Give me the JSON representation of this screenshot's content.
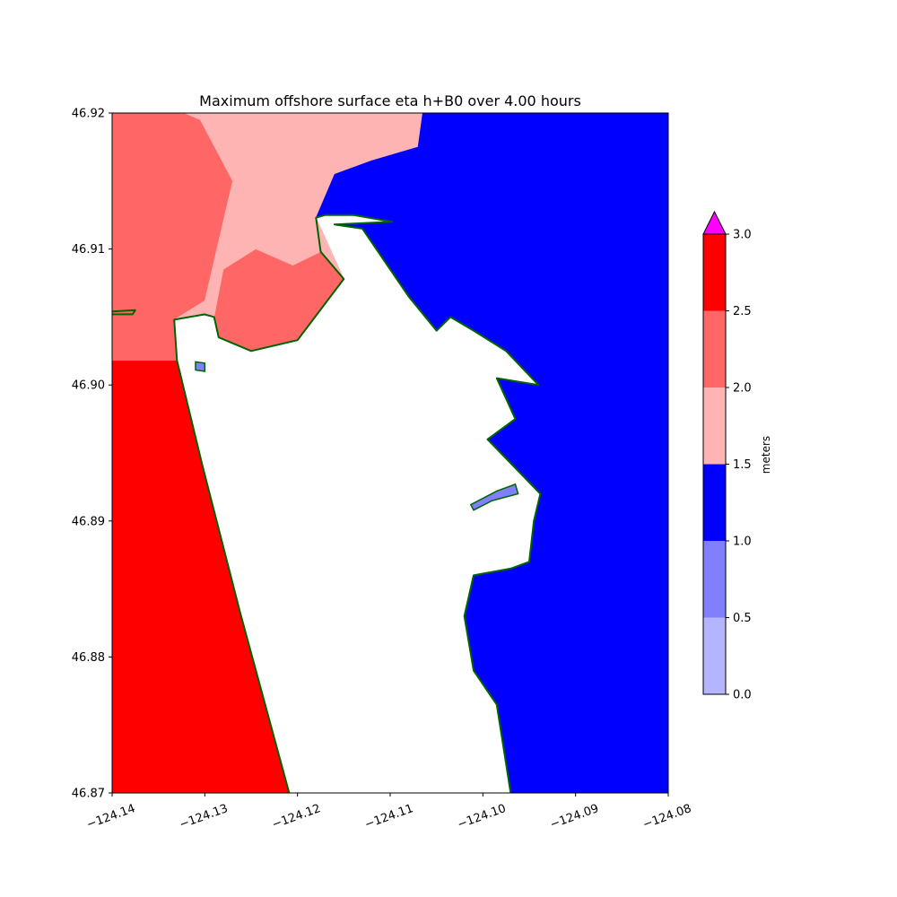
{
  "chart_data": {
    "type": "heatmap",
    "title": "Maximum offshore surface eta h+B0 over 4.00 hours",
    "xlim": [
      -124.14,
      -124.08
    ],
    "ylim": [
      46.87,
      46.92
    ],
    "x_ticks": [
      "−124.14",
      "−124.13",
      "−124.12",
      "−124.11",
      "−124.10",
      "−124.09",
      "−124.08"
    ],
    "y_ticks": [
      "46.87",
      "46.88",
      "46.89",
      "46.90",
      "46.91",
      "46.92"
    ],
    "x_tick_values": [
      -124.14,
      -124.13,
      -124.12,
      -124.11,
      -124.1,
      -124.09,
      -124.08
    ],
    "y_tick_values": [
      46.87,
      46.88,
      46.89,
      46.9,
      46.91,
      46.92
    ],
    "colorbar": {
      "label": "meters",
      "ticks": [
        "0.0",
        "0.5",
        "1.0",
        "1.5",
        "2.0",
        "2.5",
        "3.0"
      ],
      "levels": [
        0.0,
        0.5,
        1.0,
        1.5,
        2.0,
        2.5,
        3.0
      ],
      "colors": [
        "#b4b4ff",
        "#8080ff",
        "#0000ff",
        "#ffb4b4",
        "#ff6666",
        "#ff0000"
      ],
      "extend_max_color": "#ff00ff"
    },
    "land_color": "#ffffff",
    "shoreline_color": "#006400",
    "regions": [
      {
        "name": "ocean-west-red",
        "level": "2.5-3.0",
        "color": "#ff0000",
        "lonlat": [
          [
            -124.14,
            46.87
          ],
          [
            -124.1209,
            46.87
          ],
          [
            -124.1262,
            46.8833
          ],
          [
            -124.1303,
            46.8942
          ],
          [
            -124.133,
            46.9018
          ],
          [
            -124.14,
            46.9018
          ]
        ]
      },
      {
        "name": "ocean-west-salmon",
        "level": "2.0-2.5",
        "color": "#ff6666",
        "lonlat": [
          [
            -124.14,
            46.9018
          ],
          [
            -124.133,
            46.9018
          ],
          [
            -124.1333,
            46.9048
          ],
          [
            -124.131,
            46.9052
          ],
          [
            -124.129,
            46.905
          ],
          [
            -124.1285,
            46.9035
          ],
          [
            -124.125,
            46.9025
          ],
          [
            -124.12,
            46.9033
          ],
          [
            -124.115,
            46.9078
          ],
          [
            -124.118,
            46.9123
          ],
          [
            -124.1225,
            46.914
          ],
          [
            -124.1305,
            46.9195
          ],
          [
            -124.1322,
            46.92
          ],
          [
            -124.14,
            46.92
          ]
        ]
      },
      {
        "name": "ocean-north-pink",
        "level": "1.5-2.0",
        "color": "#ffb4b4",
        "lonlat": [
          [
            -124.1322,
            46.92
          ],
          [
            -124.1065,
            46.92
          ],
          [
            -124.107,
            46.9175
          ],
          [
            -124.112,
            46.9165
          ],
          [
            -124.116,
            46.9155
          ],
          [
            -124.118,
            46.9123
          ],
          [
            -124.115,
            46.9078
          ],
          [
            -124.1175,
            46.9098
          ],
          [
            -124.1205,
            46.9088
          ],
          [
            -124.1245,
            46.91
          ],
          [
            -124.128,
            46.9085
          ],
          [
            -124.129,
            46.905
          ],
          [
            -124.131,
            46.9052
          ],
          [
            -124.1333,
            46.9048
          ],
          [
            -124.13,
            46.9062
          ],
          [
            -124.127,
            46.915
          ],
          [
            -124.1305,
            46.9195
          ]
        ]
      },
      {
        "name": "bay-and-ocean-blue",
        "level": "1.0-1.5",
        "color": "#0000ff",
        "lonlat": [
          [
            -124.1065,
            46.92
          ],
          [
            -124.08,
            46.92
          ],
          [
            -124.08,
            46.87
          ],
          [
            -124.097,
            46.87
          ],
          [
            -124.0985,
            46.8765
          ],
          [
            -124.101,
            46.879
          ],
          [
            -124.102,
            46.883
          ],
          [
            -124.101,
            46.886
          ],
          [
            -124.097,
            46.8865
          ],
          [
            -124.095,
            46.887
          ],
          [
            -124.0945,
            46.89
          ],
          [
            -124.0938,
            46.892
          ],
          [
            -124.0995,
            46.896
          ],
          [
            -124.0965,
            46.8975
          ],
          [
            -124.0975,
            46.899
          ],
          [
            -124.0985,
            46.9005
          ],
          [
            -124.094,
            46.9
          ],
          [
            -124.0975,
            46.9025
          ],
          [
            -124.101,
            46.904
          ],
          [
            -124.1035,
            46.905
          ],
          [
            -124.105,
            46.904
          ],
          [
            -124.108,
            46.9065
          ],
          [
            -124.113,
            46.9115
          ],
          [
            -124.116,
            46.9118
          ],
          [
            -124.1098,
            46.912
          ],
          [
            -124.114,
            46.9125
          ],
          [
            -124.117,
            46.9125
          ],
          [
            -124.118,
            46.9123
          ],
          [
            -124.116,
            46.9155
          ],
          [
            -124.112,
            46.9165
          ],
          [
            -124.107,
            46.9175
          ]
        ]
      }
    ],
    "islands": [
      {
        "name": "shoal-island-center",
        "color": "#8080ff",
        "lonlat": [
          [
            -124.1013,
            46.8912
          ],
          [
            -124.0985,
            46.8922
          ],
          [
            -124.0965,
            46.8927
          ],
          [
            -124.0962,
            46.892
          ],
          [
            -124.099,
            46.8915
          ],
          [
            -124.101,
            46.8908
          ]
        ]
      },
      {
        "name": "islet-small-west",
        "color": "#8080ff",
        "lonlat": [
          [
            -124.131,
            46.9017
          ],
          [
            -124.13,
            46.9016
          ],
          [
            -124.13,
            46.901
          ],
          [
            -124.131,
            46.9011
          ]
        ]
      }
    ],
    "shoreline": [
      [
        [
          -124.1209,
          46.87
        ],
        [
          -124.1262,
          46.8833
        ],
        [
          -124.1303,
          46.8942
        ],
        [
          -124.133,
          46.9018
        ],
        [
          -124.1333,
          46.9048
        ],
        [
          -124.13,
          46.9052
        ],
        [
          -124.129,
          46.905
        ],
        [
          -124.1285,
          46.9035
        ],
        [
          -124.125,
          46.9025
        ],
        [
          -124.12,
          46.9033
        ],
        [
          -124.115,
          46.9078
        ],
        [
          -124.1175,
          46.9098
        ],
        [
          -124.118,
          46.9123
        ],
        [
          -124.117,
          46.9125
        ],
        [
          -124.114,
          46.9125
        ],
        [
          -124.1098,
          46.912
        ],
        [
          -124.116,
          46.9118
        ],
        [
          -124.113,
          46.9115
        ],
        [
          -124.108,
          46.9065
        ],
        [
          -124.105,
          46.904
        ],
        [
          -124.1035,
          46.905
        ],
        [
          -124.101,
          46.904
        ],
        [
          -124.0975,
          46.9025
        ],
        [
          -124.094,
          46.9
        ],
        [
          -124.0985,
          46.9005
        ],
        [
          -124.0975,
          46.899
        ],
        [
          -124.0965,
          46.8975
        ],
        [
          -124.0995,
          46.896
        ],
        [
          -124.0938,
          46.892
        ],
        [
          -124.0945,
          46.89
        ],
        [
          -124.095,
          46.887
        ],
        [
          -124.097,
          46.8865
        ],
        [
          -124.101,
          46.886
        ],
        [
          -124.102,
          46.883
        ],
        [
          -124.101,
          46.879
        ],
        [
          -124.0985,
          46.8765
        ],
        [
          -124.097,
          46.87
        ]
      ],
      [
        [
          -124.14,
          46.9054
        ],
        [
          -124.1375,
          46.9055
        ],
        [
          -124.1378,
          46.9052
        ],
        [
          -124.14,
          46.9052
        ]
      ]
    ]
  }
}
